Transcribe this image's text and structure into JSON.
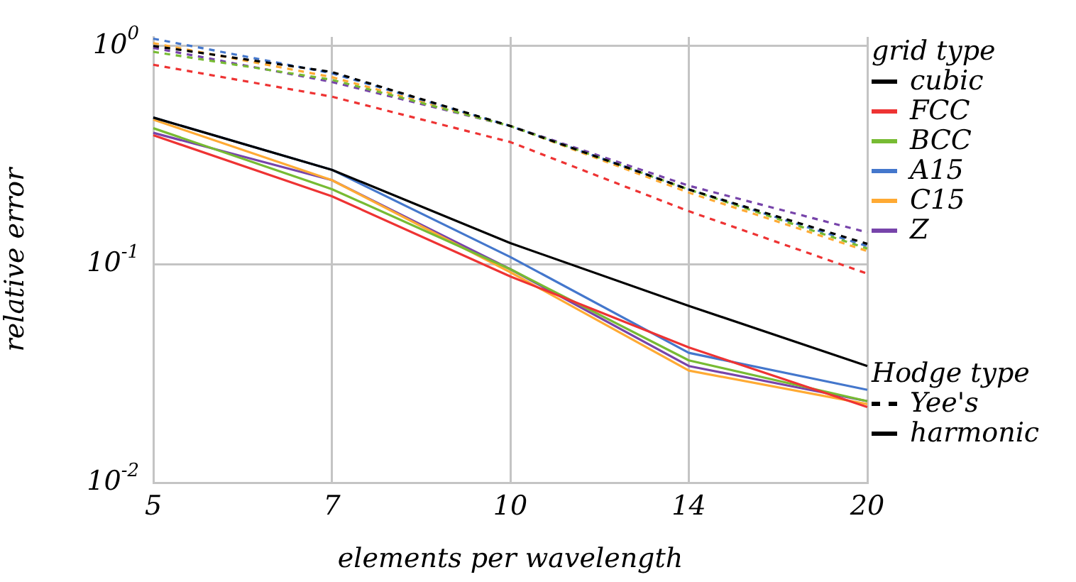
{
  "chart_data": {
    "type": "line",
    "xlabel": "elements per wavelength",
    "ylabel": "relative error",
    "categories": [
      "5",
      "7",
      "10",
      "14",
      "20"
    ],
    "log": "y",
    "ylim": [
      0.01,
      1.1
    ],
    "yticks": [
      {
        "value": 0.01,
        "label": "10$^{-2}$"
      },
      {
        "value": 0.1,
        "label": "10$^{-1}$"
      },
      {
        "value": 1,
        "label": "10$^{0}$"
      }
    ],
    "grid": true,
    "legend": "right",
    "legend_title": "grid type",
    "marker": "none",
    "annotations": [
      "Hodge type",
      "Yee's",
      "harmonic"
    ],
    "series": [
      {
        "color": "#000000",
        "line_style": "dashed",
        "values": [
          1.0,
          0.76,
          0.43,
          0.22,
          0.124
        ]
      },
      {
        "color": "#ee3333",
        "line_style": "dashed",
        "values": [
          0.82,
          0.586,
          0.363,
          0.175,
          0.0906
        ]
      },
      {
        "color": "#77bb33",
        "line_style": "dashed",
        "values": [
          0.94,
          0.7,
          0.43,
          0.22,
          0.118
        ]
      },
      {
        "color": "#4477cc",
        "line_style": "dashed",
        "values": [
          1.08,
          0.75,
          0.43,
          0.22,
          0.121
        ]
      },
      {
        "color": "#ffaa33",
        "line_style": "dashed",
        "values": [
          1.03,
          0.72,
          0.43,
          0.213,
          0.115
        ]
      },
      {
        "color": "#7744aa",
        "line_style": "dashed",
        "values": [
          0.98,
          0.684,
          0.43,
          0.229,
          0.14
        ]
      },
      {
        "name": "cubic",
        "color": "#000000",
        "line_style": "solid",
        "values": [
          0.47,
          0.271,
          0.125,
          0.0645,
          0.0342
        ]
      },
      {
        "name": "FCC",
        "color": "#ee3333",
        "line_style": "solid",
        "values": [
          0.39,
          0.205,
          0.088,
          0.0416,
          0.0222
        ]
      },
      {
        "name": "BCC",
        "color": "#77bb33",
        "line_style": "solid",
        "values": [
          0.42,
          0.221,
          0.095,
          0.0363,
          0.0236
        ]
      },
      {
        "name": "A15",
        "color": "#4477cc",
        "line_style": "solid",
        "values": [
          0.47,
          0.271,
          0.108,
          0.0393,
          0.0266
        ]
      },
      {
        "name": "C15",
        "color": "#ffaa33",
        "line_style": "solid",
        "values": [
          0.46,
          0.243,
          0.092,
          0.0326,
          0.0229
        ]
      },
      {
        "name": "Z",
        "color": "#7744aa",
        "line_style": "solid",
        "values": [
          0.4,
          0.243,
          0.095,
          0.0342,
          0.0236
        ]
      }
    ]
  }
}
